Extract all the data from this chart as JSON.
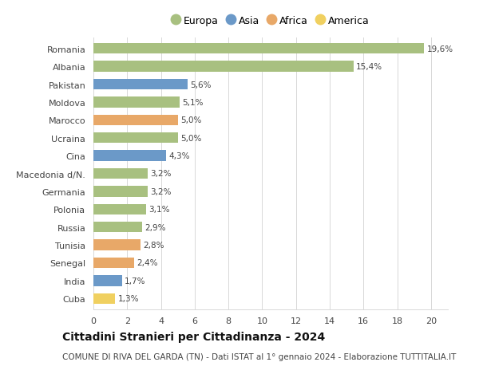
{
  "countries": [
    "Romania",
    "Albania",
    "Pakistan",
    "Moldova",
    "Marocco",
    "Ucraina",
    "Cina",
    "Macedonia d/N.",
    "Germania",
    "Polonia",
    "Russia",
    "Tunisia",
    "Senegal",
    "India",
    "Cuba"
  ],
  "values": [
    19.6,
    15.4,
    5.6,
    5.1,
    5.0,
    5.0,
    4.3,
    3.2,
    3.2,
    3.1,
    2.9,
    2.8,
    2.4,
    1.7,
    1.3
  ],
  "labels": [
    "19,6%",
    "15,4%",
    "5,6%",
    "5,1%",
    "5,0%",
    "5,0%",
    "4,3%",
    "3,2%",
    "3,2%",
    "3,1%",
    "2,9%",
    "2,8%",
    "2,4%",
    "1,7%",
    "1,3%"
  ],
  "continents": [
    "Europa",
    "Europa",
    "Asia",
    "Europa",
    "Africa",
    "Europa",
    "Asia",
    "Europa",
    "Europa",
    "Europa",
    "Europa",
    "Africa",
    "Africa",
    "Asia",
    "America"
  ],
  "colors": {
    "Europa": "#a8c080",
    "Asia": "#6b99c8",
    "Africa": "#e8a868",
    "America": "#f0d060"
  },
  "xlim": [
    0,
    21
  ],
  "xticks": [
    0,
    2,
    4,
    6,
    8,
    10,
    12,
    14,
    16,
    18,
    20
  ],
  "title": "Cittadini Stranieri per Cittadinanza - 2024",
  "subtitle": "COMUNE DI RIVA DEL GARDA (TN) - Dati ISTAT al 1° gennaio 2024 - Elaborazione TUTTITALIA.IT",
  "background_color": "#ffffff",
  "bar_height": 0.6,
  "label_fontsize": 7.5,
  "title_fontsize": 10,
  "subtitle_fontsize": 7.5,
  "ytick_fontsize": 8,
  "xtick_fontsize": 8,
  "legend_fontsize": 9
}
